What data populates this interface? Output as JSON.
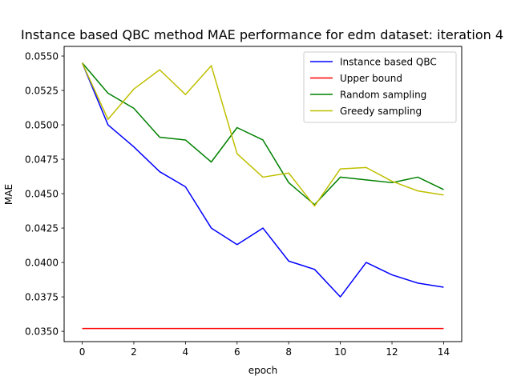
{
  "chart_data": {
    "type": "line",
    "title": "Instance based QBC method MAE performance for edm dataset: iteration 4",
    "xlabel": "epoch",
    "ylabel": "MAE",
    "x": [
      0,
      1,
      2,
      3,
      4,
      5,
      6,
      7,
      8,
      9,
      10,
      11,
      12,
      13,
      14
    ],
    "xlim": [
      -0.7,
      14.7
    ],
    "ylim": [
      0.03425,
      0.0557
    ],
    "xticks": [
      0,
      2,
      4,
      6,
      8,
      10,
      12,
      14
    ],
    "xtick_labels": [
      "0",
      "2",
      "4",
      "6",
      "8",
      "10",
      "12",
      "14"
    ],
    "yticks": [
      0.035,
      0.0375,
      0.04,
      0.0425,
      0.045,
      0.0475,
      0.05,
      0.0525,
      0.055
    ],
    "ytick_labels": [
      "0.0350",
      "0.0375",
      "0.0400",
      "0.0425",
      "0.0450",
      "0.0475",
      "0.0500",
      "0.0525",
      "0.0550"
    ],
    "grid": false,
    "legend_position": "top-right",
    "series": [
      {
        "name": "Instance based QBC",
        "color": "#0000ff",
        "values": [
          0.0545,
          0.05,
          0.0484,
          0.0466,
          0.0455,
          0.0425,
          0.0413,
          0.0425,
          0.0401,
          0.0395,
          0.0375,
          0.04,
          0.0391,
          0.0385,
          0.0382
        ]
      },
      {
        "name": "Upper bound",
        "color": "#ff0000",
        "values": [
          0.0352,
          0.0352,
          0.0352,
          0.0352,
          0.0352,
          0.0352,
          0.0352,
          0.0352,
          0.0352,
          0.0352,
          0.0352,
          0.0352,
          0.0352,
          0.0352,
          0.0352
        ]
      },
      {
        "name": "Random sampling",
        "color": "#008000",
        "values": [
          0.0545,
          0.0523,
          0.0512,
          0.0491,
          0.0489,
          0.0473,
          0.0498,
          0.0489,
          0.0458,
          0.0442,
          0.0462,
          0.046,
          0.0458,
          0.0462,
          0.0453
        ]
      },
      {
        "name": "Greedy sampling",
        "color": "#bfbf00",
        "values": [
          0.0545,
          0.0504,
          0.0526,
          0.054,
          0.0522,
          0.0543,
          0.0479,
          0.0462,
          0.0465,
          0.0441,
          0.0468,
          0.0469,
          0.0459,
          0.0452,
          0.0449
        ]
      }
    ]
  }
}
